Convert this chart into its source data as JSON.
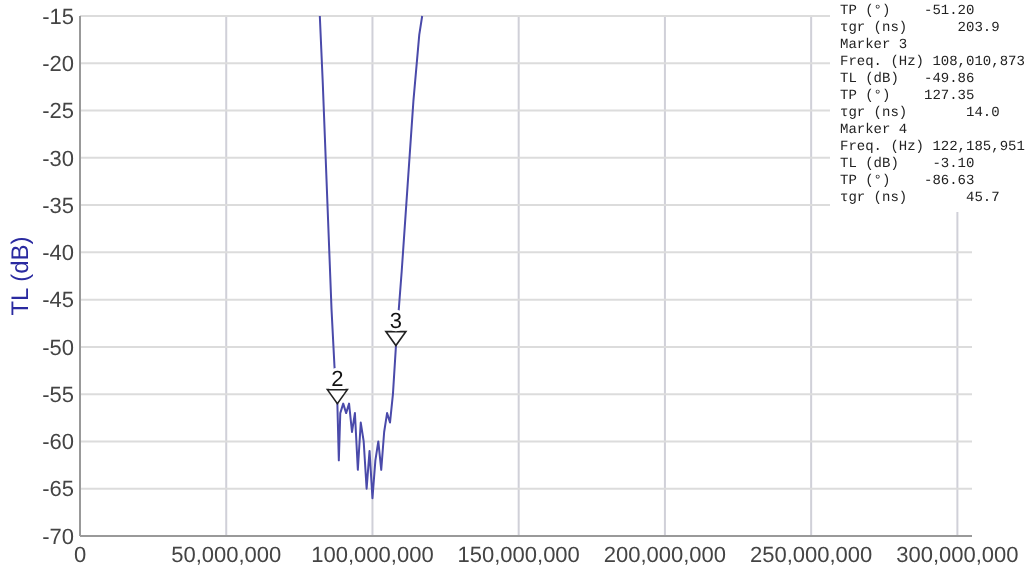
{
  "chart_data": {
    "type": "line",
    "ylabel": "TL (dB)",
    "x": [
      82000000,
      83000000,
      84000000,
      85000000,
      86000000,
      87000000,
      88000000,
      88500000,
      89000000,
      90000000,
      91000000,
      92000000,
      93000000,
      94000000,
      95000000,
      96000000,
      97000000,
      98000000,
      99000000,
      100000000,
      101000000,
      102000000,
      103000000,
      104000000,
      105000000,
      106000000,
      107000000,
      108010873,
      110000000,
      112000000,
      114000000,
      116000000,
      117000000
    ],
    "series": [
      {
        "color": "#4a4aaa",
        "values": [
          -15,
          -22,
          -30,
          -38,
          -46,
          -52,
          -56,
          -62,
          -57,
          -56,
          -57,
          -56,
          -59,
          -57,
          -63,
          -58,
          -60,
          -65,
          -61,
          -66,
          -62,
          -60,
          -63,
          -59,
          -57,
          -58,
          -55,
          -50,
          -42,
          -33,
          -24,
          -17,
          -15
        ]
      }
    ],
    "xlim": [
      0,
      305000000
    ],
    "xticks": [
      {
        "value": 0,
        "label": "0"
      },
      {
        "value": 50000000,
        "label": "50,000,000"
      },
      {
        "value": 100000000,
        "label": "100,000,000"
      },
      {
        "value": 150000000,
        "label": "150,000,000"
      },
      {
        "value": 200000000,
        "label": "200,000,000"
      },
      {
        "value": 250000000,
        "label": "250,000,000"
      },
      {
        "value": 300000000,
        "label": "300,000,000"
      }
    ],
    "ylim": [
      -70,
      -15
    ],
    "yticks": [
      -70,
      -65,
      -60,
      -55,
      -50,
      -45,
      -40,
      -35,
      -30,
      -25,
      -20,
      -15
    ],
    "grid": true,
    "marker": "none",
    "line_style": "solid",
    "annotations": [
      {
        "text": "2",
        "x": 88000000,
        "y": -56
      },
      {
        "text": "3",
        "x": 108010873,
        "y": -49.86
      },
      "TP (°)    -51.20",
      "τgr (ns)      203.9",
      "Marker 3",
      "Freq. (Hz) 108,010,873",
      "TL (dB)   -49.86",
      "TP (°)    127.35",
      "τgr (ns)       14.0",
      "Marker 4",
      "Freq. (Hz) 122,185,951",
      "TL (dB)    -3.10",
      "TP (°)    -86.63",
      "τgr (ns)       45.7"
    ]
  }
}
